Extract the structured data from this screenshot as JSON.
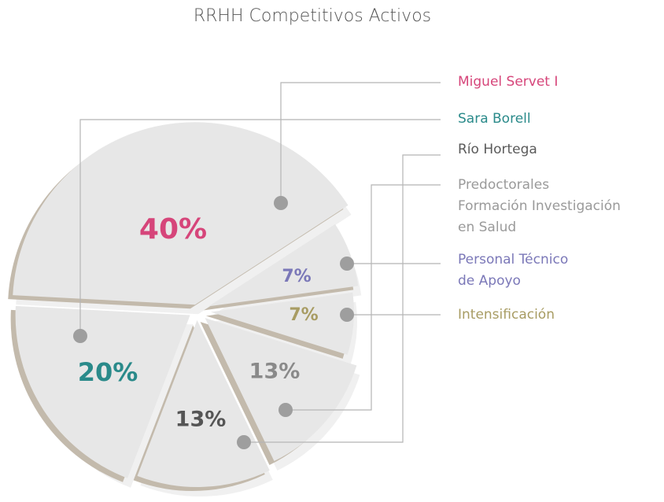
{
  "chart_data": {
    "type": "pie",
    "title": "RRHH Competitivos Activos",
    "categories": [
      "Miguel Servet I",
      "Sara Borell",
      "Río Hortega",
      "Predoctorales\nFormación Investigación\nen Salud",
      "Personal Técnico\nde Apoyo",
      "Intensificación"
    ],
    "values": [
      40,
      20,
      13,
      13,
      7,
      7
    ],
    "value_labels": [
      "40%",
      "20%",
      "13%",
      "13%",
      "7%",
      "7%"
    ],
    "colors": [
      "#d6457a",
      "#2a8a8a",
      "#5a5a5a",
      "#9a9a9a",
      "#7b78b8",
      "#a89c63"
    ]
  }
}
